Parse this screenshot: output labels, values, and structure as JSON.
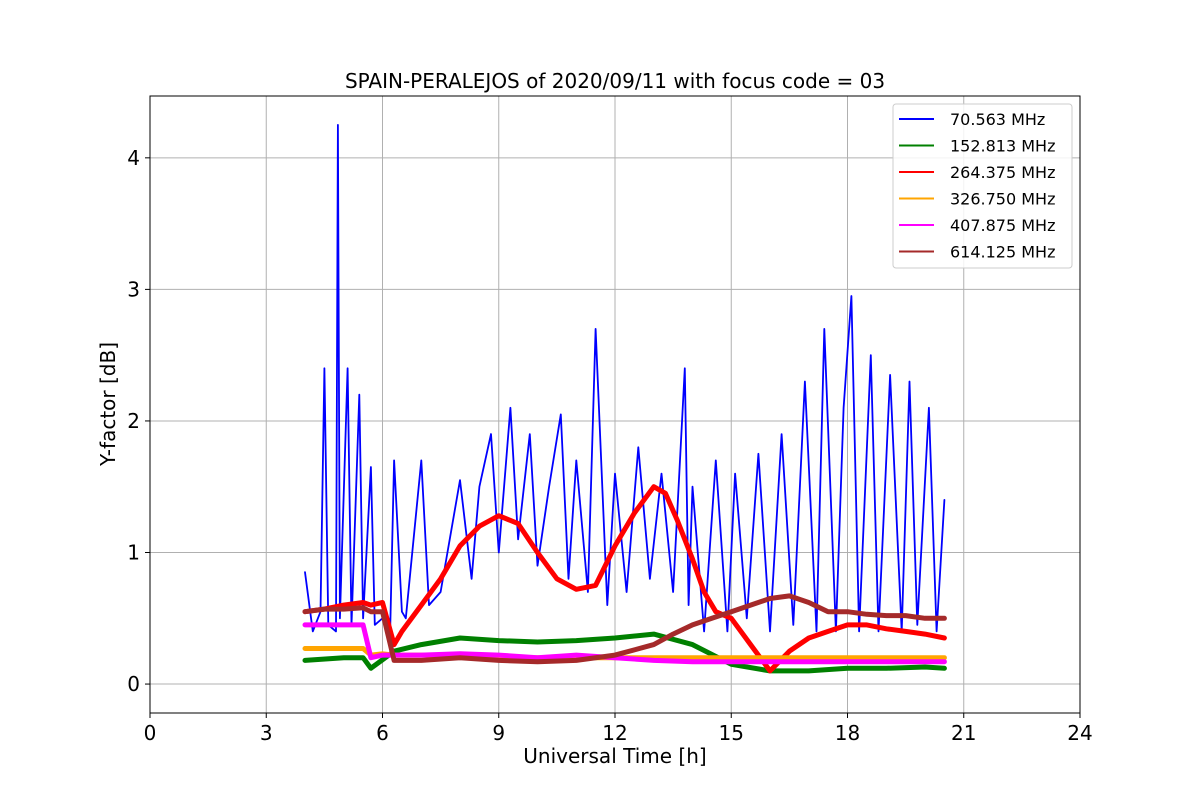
{
  "chart_data": {
    "type": "line",
    "title": "SPAIN-PERALEJOS of 2020/09/11 with focus code = 03",
    "xlabel": "Universal Time [h]",
    "ylabel": "Y-factor [dB]",
    "xlim": [
      0,
      24
    ],
    "ylim": [
      -0.22,
      4.47
    ],
    "xticks": [
      0,
      3,
      6,
      9,
      12,
      15,
      18,
      21,
      24
    ],
    "yticks": [
      0,
      1,
      2,
      3,
      4
    ],
    "grid": true,
    "legend_position": "top-right",
    "series": [
      {
        "name": " 70.563 MHz",
        "color": "#0000ff",
        "x": [
          4.0,
          4.2,
          4.4,
          4.5,
          4.6,
          4.8,
          4.85,
          4.9,
          5.1,
          5.2,
          5.4,
          5.5,
          5.7,
          5.8,
          6.0,
          6.2,
          6.3,
          6.5,
          6.6,
          7.0,
          7.2,
          7.5,
          8.0,
          8.3,
          8.5,
          8.8,
          9.0,
          9.3,
          9.5,
          9.8,
          10.0,
          10.3,
          10.6,
          10.8,
          11.0,
          11.3,
          11.5,
          11.8,
          12.0,
          12.3,
          12.6,
          12.9,
          13.2,
          13.5,
          13.8,
          13.9,
          14.0,
          14.3,
          14.6,
          14.9,
          15.1,
          15.4,
          15.7,
          16.0,
          16.3,
          16.6,
          16.9,
          17.2,
          17.4,
          17.7,
          17.9,
          18.1,
          18.3,
          18.6,
          18.8,
          19.1,
          19.4,
          19.6,
          19.8,
          20.1,
          20.3,
          20.5
        ],
        "y": [
          0.85,
          0.4,
          0.55,
          2.4,
          0.45,
          0.4,
          4.25,
          0.5,
          2.4,
          0.45,
          2.2,
          0.5,
          1.65,
          0.45,
          0.5,
          0.45,
          1.7,
          0.55,
          0.5,
          1.7,
          0.6,
          0.7,
          1.55,
          0.8,
          1.5,
          1.9,
          1.0,
          2.1,
          1.1,
          1.9,
          0.9,
          1.5,
          2.05,
          0.8,
          1.7,
          0.7,
          2.7,
          0.6,
          1.6,
          0.7,
          1.8,
          0.8,
          1.6,
          0.7,
          2.4,
          0.6,
          1.5,
          0.4,
          1.7,
          0.4,
          1.6,
          0.5,
          1.75,
          0.4,
          1.9,
          0.45,
          2.3,
          0.4,
          2.7,
          0.4,
          2.1,
          2.95,
          0.4,
          2.5,
          0.4,
          2.35,
          0.4,
          2.3,
          0.45,
          2.1,
          0.4,
          1.4
        ]
      },
      {
        "name": "152.813 MHz",
        "color": "#008000",
        "x": [
          4.0,
          5.0,
          5.5,
          5.7,
          6.3,
          7.0,
          8.0,
          9.0,
          10.0,
          11.0,
          12.0,
          13.0,
          14.0,
          15.0,
          16.0,
          17.0,
          18.0,
          19.0,
          20.0,
          20.5
        ],
        "y": [
          0.18,
          0.2,
          0.2,
          0.12,
          0.25,
          0.3,
          0.35,
          0.33,
          0.32,
          0.33,
          0.35,
          0.38,
          0.3,
          0.15,
          0.1,
          0.1,
          0.12,
          0.12,
          0.13,
          0.12
        ]
      },
      {
        "name": "264.375 MHz",
        "color": "#ff0000",
        "x": [
          4.0,
          4.5,
          5.0,
          5.5,
          5.7,
          6.0,
          6.3,
          6.5,
          7.0,
          7.5,
          8.0,
          8.5,
          9.0,
          9.5,
          10.0,
          10.5,
          11.0,
          11.5,
          12.0,
          12.5,
          13.0,
          13.3,
          13.6,
          14.0,
          14.3,
          14.6,
          15.0,
          15.5,
          16.0,
          16.5,
          17.0,
          17.5,
          18.0,
          18.5,
          19.0,
          19.5,
          20.0,
          20.5
        ],
        "y": [
          0.55,
          0.57,
          0.6,
          0.62,
          0.6,
          0.62,
          0.3,
          0.4,
          0.6,
          0.8,
          1.05,
          1.2,
          1.28,
          1.22,
          1.0,
          0.8,
          0.72,
          0.75,
          1.05,
          1.3,
          1.5,
          1.45,
          1.25,
          0.95,
          0.7,
          0.55,
          0.5,
          0.3,
          0.1,
          0.25,
          0.35,
          0.4,
          0.45,
          0.45,
          0.42,
          0.4,
          0.38,
          0.35
        ]
      },
      {
        "name": "326.750 MHz",
        "color": "#ffa500",
        "x": [
          4.0,
          4.5,
          5.0,
          5.5,
          5.7,
          6.0,
          6.3,
          7.0,
          8.0,
          9.0,
          10.0,
          11.0,
          12.0,
          13.0,
          14.0,
          15.0,
          16.0,
          17.0,
          18.0,
          19.0,
          20.0,
          20.5
        ],
        "y": [
          0.27,
          0.27,
          0.27,
          0.27,
          0.22,
          0.23,
          0.22,
          0.22,
          0.22,
          0.2,
          0.2,
          0.2,
          0.2,
          0.2,
          0.2,
          0.2,
          0.2,
          0.2,
          0.2,
          0.2,
          0.2,
          0.2
        ]
      },
      {
        "name": "407.875 MHz",
        "color": "#ff00ff",
        "x": [
          4.0,
          4.5,
          5.0,
          5.5,
          5.7,
          6.0,
          6.3,
          7.0,
          8.0,
          9.0,
          10.0,
          11.0,
          12.0,
          13.0,
          14.0,
          15.0,
          16.0,
          17.0,
          18.0,
          19.0,
          20.0,
          20.5
        ],
        "y": [
          0.45,
          0.45,
          0.45,
          0.45,
          0.2,
          0.22,
          0.22,
          0.22,
          0.23,
          0.22,
          0.2,
          0.22,
          0.2,
          0.18,
          0.17,
          0.17,
          0.17,
          0.17,
          0.17,
          0.17,
          0.17,
          0.17
        ]
      },
      {
        "name": "614.125 MHz",
        "color": "#a52a2a",
        "x": [
          4.0,
          4.5,
          5.0,
          5.5,
          5.7,
          6.0,
          6.3,
          7.0,
          8.0,
          9.0,
          10.0,
          11.0,
          12.0,
          13.0,
          13.5,
          14.0,
          14.5,
          15.0,
          15.5,
          16.0,
          16.5,
          17.0,
          17.5,
          18.0,
          18.5,
          19.0,
          19.5,
          20.0,
          20.5
        ],
        "y": [
          0.55,
          0.57,
          0.57,
          0.58,
          0.55,
          0.55,
          0.18,
          0.18,
          0.2,
          0.18,
          0.17,
          0.18,
          0.22,
          0.3,
          0.38,
          0.45,
          0.5,
          0.55,
          0.6,
          0.65,
          0.67,
          0.62,
          0.55,
          0.55,
          0.53,
          0.52,
          0.52,
          0.5,
          0.5
        ]
      }
    ]
  }
}
